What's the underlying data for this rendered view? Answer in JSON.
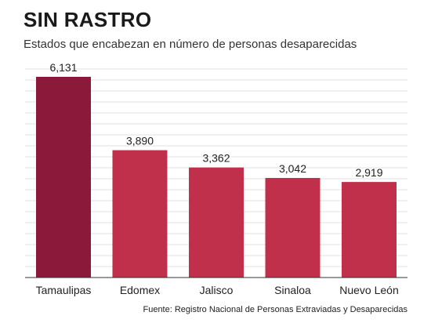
{
  "header": {
    "title": "SIN RASTRO",
    "subtitle": "Estados que encabezan en número de personas desaparecidas"
  },
  "footer": {
    "source": "Fuente: Registro Nacional de Personas Extraviadas y Desaparecidas"
  },
  "colors": {
    "highlight_bar": "#8b1a3a",
    "bar": "#c0304a",
    "gridline": "#d9d9d9",
    "baseline": "#333333"
  },
  "chart_data": {
    "type": "bar",
    "title": "SIN RASTRO",
    "subtitle": "Estados que encabezan en número de personas desaparecidas",
    "categories": [
      "Tamaulipas",
      "Edomex",
      "Jalisco",
      "Sinaloa",
      "Nuevo León"
    ],
    "values": [
      6131,
      3890,
      3362,
      3042,
      2919
    ],
    "value_labels": [
      "6,131",
      "3,890",
      "3,362",
      "3,042",
      "2,919"
    ],
    "highlighted_category": "Tamaulipas",
    "xlabel": "",
    "ylabel": "",
    "ylim": [
      0,
      6131
    ],
    "grid": true,
    "legend": "none"
  }
}
